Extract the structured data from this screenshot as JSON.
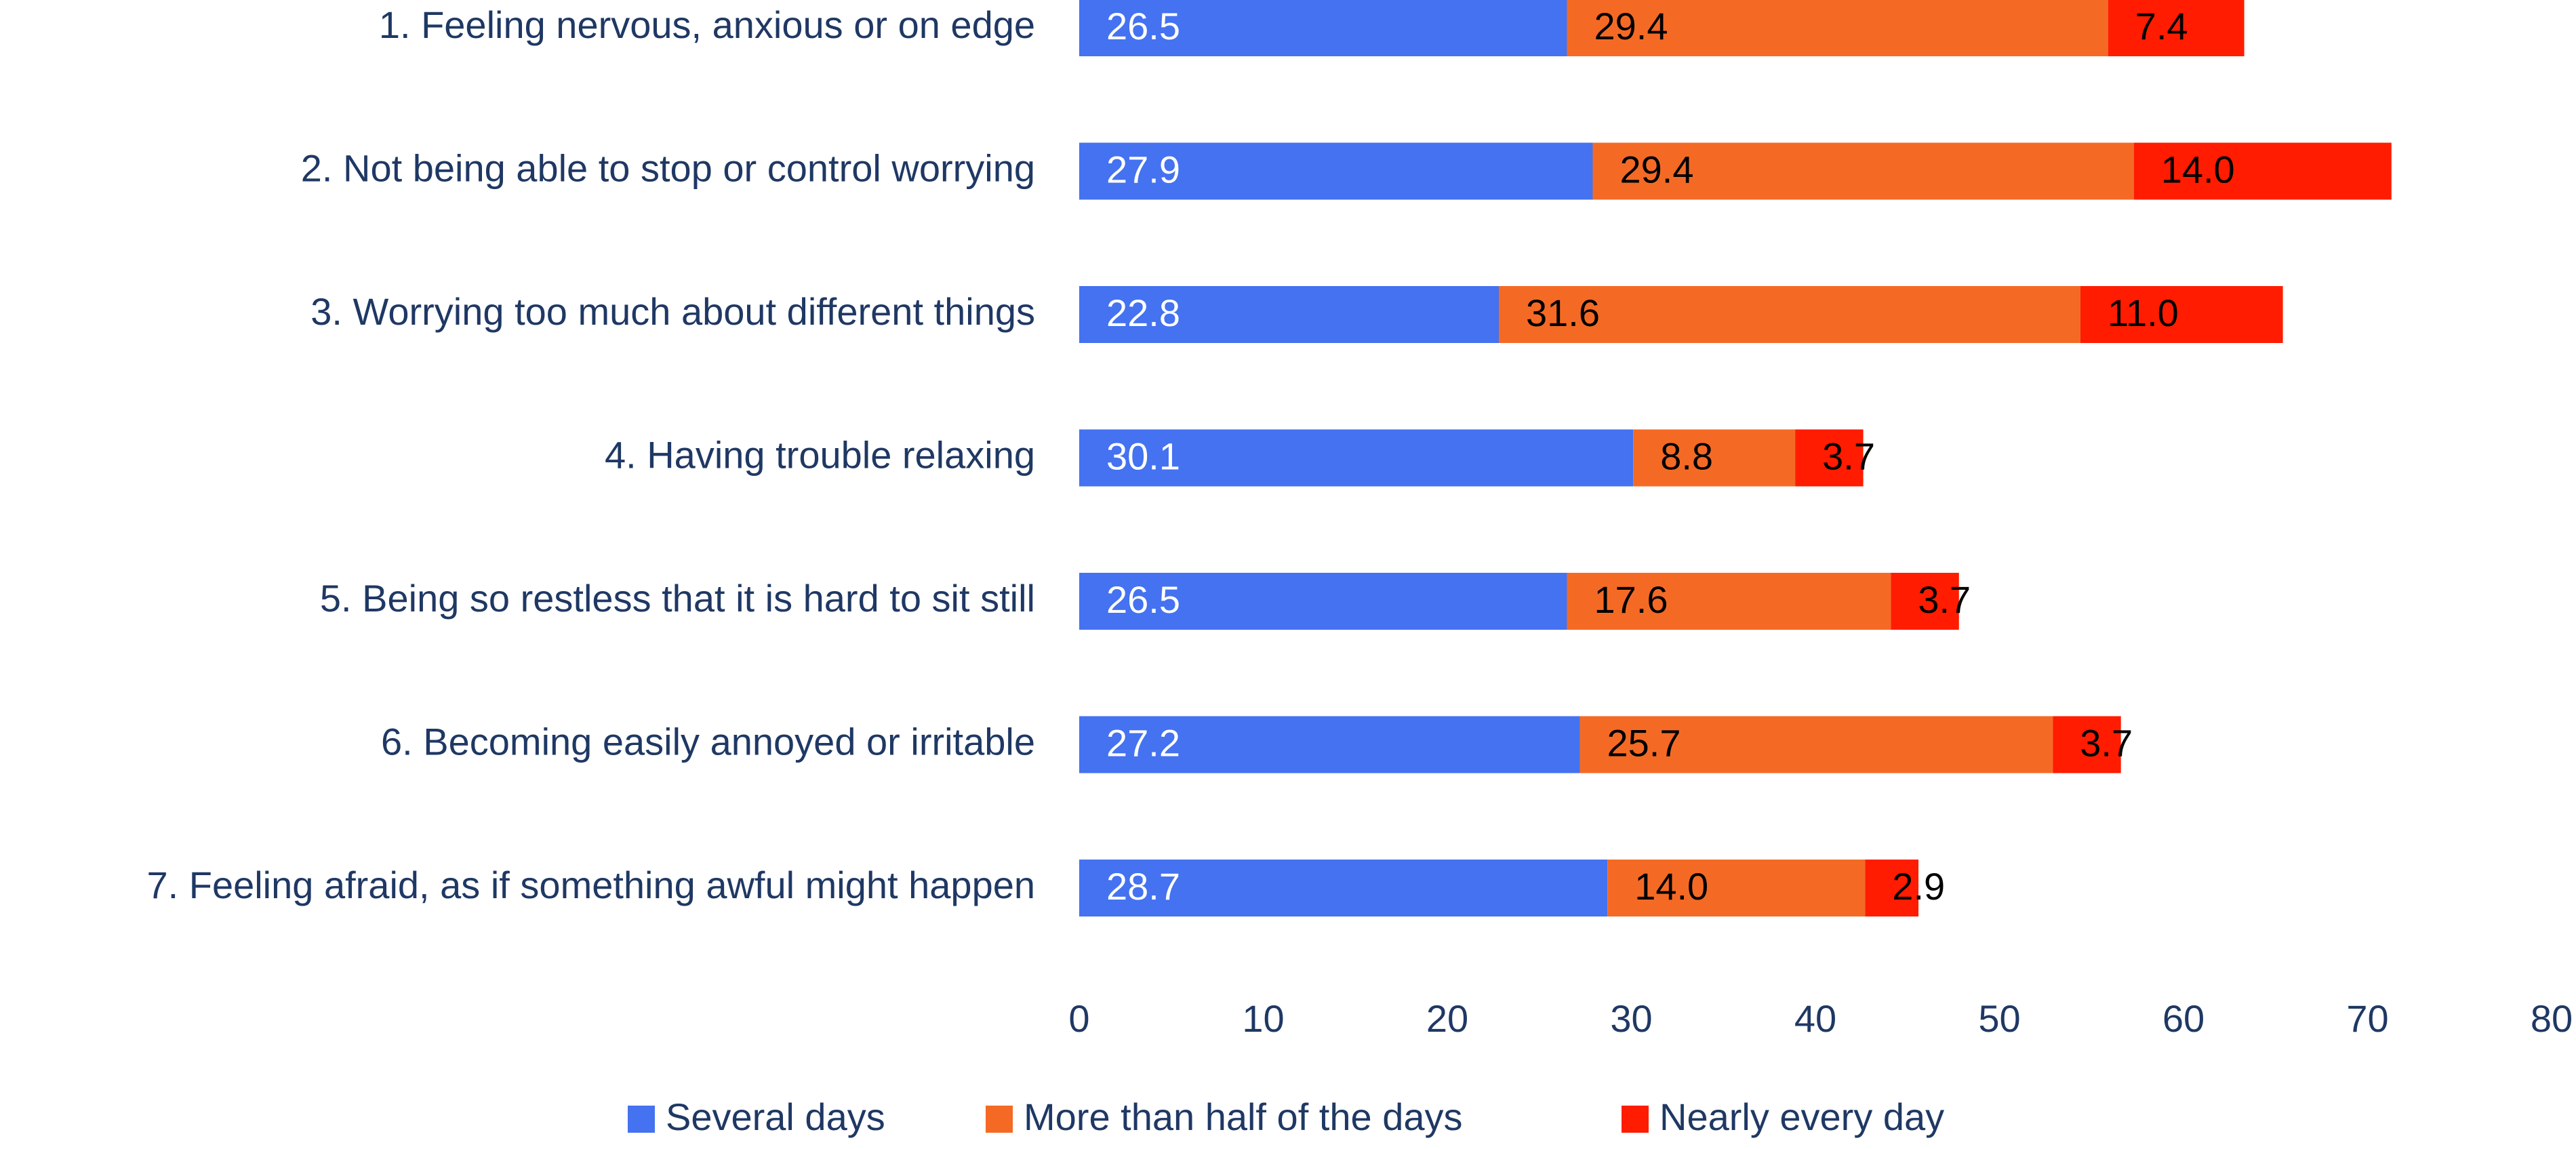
{
  "chart_data": {
    "type": "stacked-bar-horizontal",
    "categories": [
      "1. Feeling nervous, anxious or on edge",
      "2. Not being able to stop or control worrying",
      "3. Worrying too much about different things",
      "4. Having trouble relaxing",
      "5. Being so restless that it is hard to sit still",
      "6. Becoming easily annoyed or irritable",
      "7. Feeling afraid, as if something awful might happen"
    ],
    "series": [
      {
        "name": "Several days",
        "color": "#4472f0",
        "label_color": "#ffffff",
        "values": [
          26.5,
          27.9,
          22.8,
          30.1,
          26.5,
          27.2,
          28.7
        ],
        "value_labels": [
          "26.5",
          "27.9",
          "22.8",
          "30.1",
          "26.5",
          "27.2",
          "28.7"
        ]
      },
      {
        "name": "More than half of the days",
        "color": "#f46a25",
        "label_color": "#000000",
        "values": [
          29.4,
          29.4,
          31.6,
          8.8,
          17.6,
          25.7,
          14.0
        ],
        "value_labels": [
          "29.4",
          "29.4",
          "31.6",
          "8.8",
          "17.6",
          "25.7",
          "14.0"
        ]
      },
      {
        "name": "Nearly every day",
        "color": "#ff1c00",
        "label_color": "#000000",
        "values": [
          7.4,
          14.0,
          11.0,
          3.7,
          3.7,
          3.7,
          2.9
        ],
        "value_labels": [
          "7.4",
          "14.0",
          "11.0",
          "3.7",
          "3.7",
          "3.7",
          "2.9"
        ]
      }
    ],
    "xlim": [
      0,
      80
    ],
    "xticks": [
      0,
      10,
      20,
      30,
      40,
      50,
      60,
      70,
      80
    ],
    "grid": false,
    "legend": "bottom"
  }
}
